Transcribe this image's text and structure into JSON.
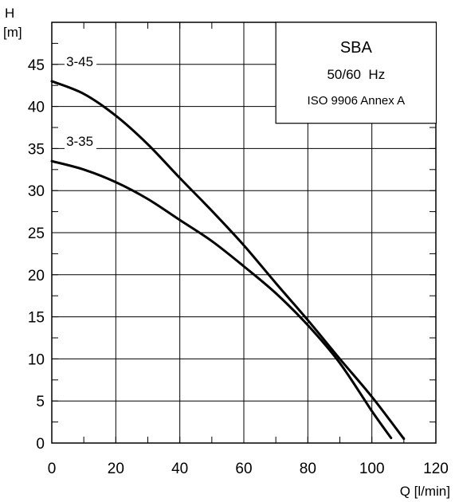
{
  "chart_data": {
    "type": "line",
    "xlabel": "Q [l/min]",
    "ylabel_top": "H",
    "ylabel_unit": "[m]",
    "xlim": [
      0,
      120
    ],
    "ylim": [
      0,
      50
    ],
    "x_ticks": [
      0,
      20,
      40,
      60,
      80,
      100,
      120
    ],
    "y_ticks": [
      0,
      5,
      10,
      15,
      20,
      25,
      30,
      35,
      40,
      45
    ],
    "grid": true,
    "legend_box": {
      "title": "SBA",
      "frequency": "50/60  Hz",
      "standard": "ISO 9906 Annex A",
      "placement": "top-right"
    },
    "series": [
      {
        "name": "3-45",
        "x": [
          0,
          10,
          20,
          30,
          40,
          50,
          60,
          70,
          80,
          90,
          100,
          110
        ],
        "y": [
          43,
          41.5,
          38.9,
          35.5,
          31.5,
          27.6,
          23.5,
          19.0,
          14.6,
          10.0,
          5.5,
          0.5
        ]
      },
      {
        "name": "3-35",
        "x": [
          0,
          10,
          20,
          30,
          40,
          50,
          60,
          70,
          80,
          90,
          100,
          106
        ],
        "y": [
          33.5,
          32.5,
          31.0,
          29.0,
          26.5,
          24.0,
          21.0,
          17.8,
          14.0,
          9.5,
          3.8,
          0.6
        ]
      }
    ]
  }
}
